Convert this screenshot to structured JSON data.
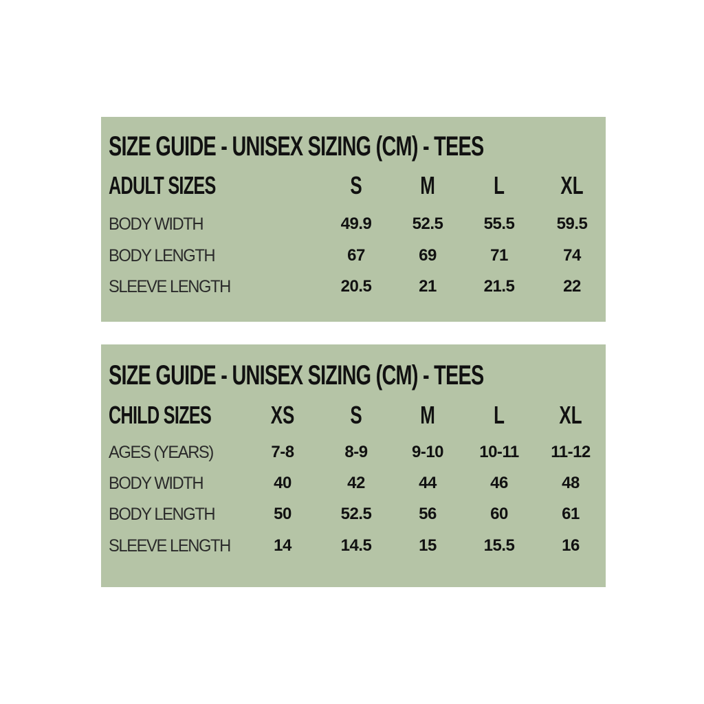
{
  "colors": {
    "panel_background": "#b5c4a6",
    "text": "#111111"
  },
  "adult": {
    "title": "SIZE GUIDE - UNISEX SIZING (CM) - TEES",
    "header_label": "ADULT SIZES",
    "sizes": [
      "S",
      "M",
      "L",
      "XL"
    ],
    "rows": [
      {
        "label": "BODY WIDTH",
        "values": [
          "49.9",
          "52.5",
          "55.5",
          "59.5"
        ]
      },
      {
        "label": "BODY LENGTH",
        "values": [
          "67",
          "69",
          "71",
          "74"
        ]
      },
      {
        "label": "SLEEVE LENGTH",
        "values": [
          "20.5",
          "21",
          "21.5",
          "22"
        ]
      }
    ]
  },
  "child": {
    "title": "SIZE GUIDE - UNISEX SIZING (CM) - TEES",
    "header_label": "CHILD SIZES",
    "sizes": [
      "XS",
      "S",
      "M",
      "L",
      "XL"
    ],
    "rows": [
      {
        "label": "AGES (YEARS)",
        "values": [
          "7-8",
          "8-9",
          "9-10",
          "10-11",
          "11-12"
        ]
      },
      {
        "label": "BODY WIDTH",
        "values": [
          "40",
          "42",
          "44",
          "46",
          "48"
        ]
      },
      {
        "label": "BODY LENGTH",
        "values": [
          "50",
          "52.5",
          "56",
          "60",
          "61"
        ]
      },
      {
        "label": "SLEEVE LENGTH",
        "values": [
          "14",
          "14.5",
          "15",
          "15.5",
          "16"
        ]
      }
    ]
  }
}
